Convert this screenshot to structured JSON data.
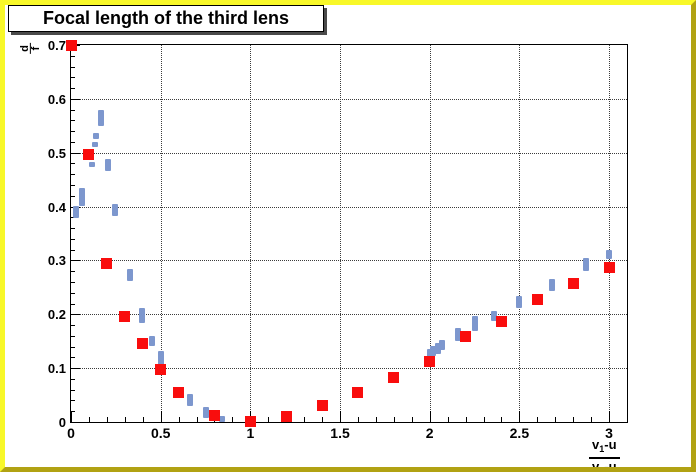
{
  "chart_data": {
    "type": "scatter",
    "title": "Focal length of the third lens",
    "xlabel": "(v1-u)/(v2-u)",
    "ylabel": "d/f",
    "xlim": [
      0,
      3.1
    ],
    "ylim": [
      0,
      0.7
    ],
    "grid": "dotted lines at every major tick, both axes",
    "legend_position": "none",
    "x_ticks": {
      "values": [
        0,
        0.5,
        1,
        1.5,
        2,
        2.5,
        3
      ],
      "labels": [
        "0",
        "0.5",
        "1",
        "1.5",
        "2",
        "2.5",
        "3"
      ],
      "minor_step": 0.1
    },
    "y_ticks": {
      "values": [
        0,
        0.1,
        0.2,
        0.3,
        0.4,
        0.5,
        0.6,
        0.7
      ],
      "labels": [
        "0",
        "0.1",
        "0.2",
        "0.3",
        "0.4",
        "0.5",
        "0.6",
        "0.7"
      ],
      "minor_step": 0.02
    },
    "series": [
      {
        "name": "red-filled-squares",
        "marker": "filled-square",
        "color": "#f90d0d",
        "points": [
          [
            0.0,
            0.7
          ],
          [
            0.1,
            0.497
          ],
          [
            0.2,
            0.295
          ],
          [
            0.3,
            0.195
          ],
          [
            0.4,
            0.145
          ],
          [
            0.5,
            0.097
          ],
          [
            0.6,
            0.054
          ],
          [
            0.8,
            0.012
          ],
          [
            1.0,
            0.001
          ],
          [
            1.2,
            0.01
          ],
          [
            1.4,
            0.03
          ],
          [
            1.6,
            0.054
          ],
          [
            1.8,
            0.082
          ],
          [
            2.0,
            0.112
          ],
          [
            2.2,
            0.158
          ],
          [
            2.4,
            0.186
          ],
          [
            2.6,
            0.227
          ],
          [
            2.8,
            0.258
          ],
          [
            3.0,
            0.287
          ]
        ]
      },
      {
        "name": "blue-small-marker-clusters",
        "marker": "small-vertical-rect",
        "color": "#7d97ce",
        "points_format": "[x, y_low, y_high]",
        "points": [
          [
            0.03,
            0.379,
            0.401
          ],
          [
            0.06,
            0.401,
            0.434
          ],
          [
            0.245,
            0.382,
            0.405
          ],
          [
            0.165,
            0.55,
            0.58
          ],
          [
            0.14,
            0.525,
            0.537
          ],
          [
            0.135,
            0.511,
            0.52
          ],
          [
            0.115,
            0.473,
            0.483
          ],
          [
            0.205,
            0.466,
            0.489
          ],
          [
            0.33,
            0.262,
            0.284
          ],
          [
            0.395,
            0.184,
            0.212
          ],
          [
            0.45,
            0.141,
            0.16
          ],
          [
            0.5,
            0.104,
            0.132
          ],
          [
            0.665,
            0.03,
            0.052
          ],
          [
            0.75,
            0.007,
            0.028
          ],
          [
            0.84,
            0.0,
            0.012
          ],
          [
            2.0,
            0.118,
            0.136
          ],
          [
            2.02,
            0.122,
            0.142
          ],
          [
            2.045,
            0.127,
            0.147
          ],
          [
            2.07,
            0.133,
            0.152
          ],
          [
            2.16,
            0.15,
            0.175
          ],
          [
            2.25,
            0.169,
            0.197
          ],
          [
            2.36,
            0.188,
            0.206
          ],
          [
            2.5,
            0.212,
            0.234
          ],
          [
            2.68,
            0.243,
            0.266
          ],
          [
            2.87,
            0.28,
            0.305
          ],
          [
            3.0,
            0.303,
            0.32
          ]
        ]
      }
    ]
  },
  "axis_titles": {
    "y_numerator": "d",
    "y_denominator": "f",
    "x_num_base": "v",
    "x_num_sub": "1",
    "x_num_tail": "-u",
    "x_den_base": "v",
    "x_den_sub": "2",
    "x_den_tail": "-u"
  },
  "colors": {
    "canvas_border_light": "#f8f829",
    "canvas_border_dark": "#b1a213",
    "red_marker": "#f90d0d",
    "blue_marker": "#7d97ce",
    "grid": "#3c3c3c",
    "axis": "#000000"
  }
}
